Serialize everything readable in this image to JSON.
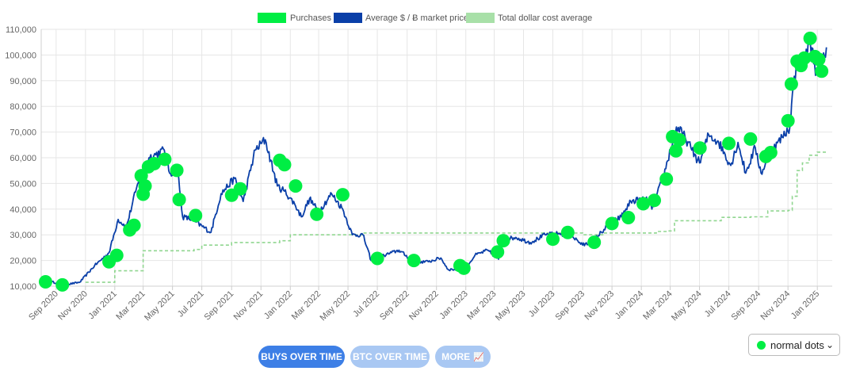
{
  "colors": {
    "purchases": "#00ee44",
    "price": "#0a3fa8",
    "dca": "#90d690",
    "grid": "#e6e6e6",
    "axis_text": "#666666",
    "button_primary": "#3d7fe6",
    "button_secondary": "#a9c8f3"
  },
  "chart_data": {
    "type": "line",
    "legend": {
      "position": "top-center",
      "entries": [
        "Purchases",
        "Average $ / Ƀ market price",
        "Total dollar cost average"
      ]
    },
    "grid": true,
    "yticks": [
      "10,000",
      "20,000",
      "30,000",
      "40,000",
      "50,000",
      "60,000",
      "70,000",
      "80,000",
      "90,000",
      "100,000",
      "110,000"
    ],
    "ylim": [
      10000,
      110000
    ],
    "xticks": [
      "Sep 2020",
      "Nov 2020",
      "Jan 2021",
      "Mar 2021",
      "May 2021",
      "Jul 2021",
      "Sep 2021",
      "Nov 2021",
      "Jan 2022",
      "Mar 2022",
      "May 2022",
      "Jul 2022",
      "Sep 2022",
      "Nov 2022",
      "Jan 2023",
      "Mar 2023",
      "May 2023",
      "Jul 2023",
      "Sep 2023",
      "Nov 2023",
      "Jan 2024",
      "Mar 2024",
      "May 2024",
      "Jul 2024",
      "Sep 2024",
      "Nov 2024",
      "Jan 2025"
    ],
    "xlim": [
      "2020-08-01",
      "2025-02-01"
    ],
    "series": [
      {
        "name": "Average $ / Ƀ market price",
        "type": "line",
        "x": [
          "2020-08-20",
          "2020-09-20",
          "2020-10-20",
          "2020-11-20",
          "2020-12-20",
          "2021-01-08",
          "2021-01-25",
          "2021-02-15",
          "2021-03-13",
          "2021-04-14",
          "2021-04-25",
          "2021-05-12",
          "2021-05-22",
          "2021-06-10",
          "2021-07-20",
          "2021-08-10",
          "2021-09-07",
          "2021-09-25",
          "2021-10-20",
          "2021-11-10",
          "2021-12-05",
          "2021-12-20",
          "2022-01-10",
          "2022-01-24",
          "2022-02-10",
          "2022-03-01",
          "2022-03-28",
          "2022-04-20",
          "2022-05-10",
          "2022-06-01",
          "2022-06-18",
          "2022-07-15",
          "2022-08-15",
          "2022-09-15",
          "2022-10-15",
          "2022-11-10",
          "2022-11-25",
          "2022-12-30",
          "2023-01-20",
          "2023-02-15",
          "2023-03-10",
          "2023-03-20",
          "2023-04-15",
          "2023-05-15",
          "2023-06-15",
          "2023-07-15",
          "2023-08-10",
          "2023-09-01",
          "2023-09-20",
          "2023-10-25",
          "2023-11-20",
          "2023-12-10",
          "2024-01-10",
          "2024-01-23",
          "2024-02-15",
          "2024-03-14",
          "2024-04-01",
          "2024-04-15",
          "2024-05-01",
          "2024-05-20",
          "2024-06-10",
          "2024-07-05",
          "2024-07-20",
          "2024-08-05",
          "2024-08-25",
          "2024-09-06",
          "2024-09-30",
          "2024-10-20",
          "2024-11-05",
          "2024-11-12",
          "2024-11-22",
          "2024-12-05",
          "2024-12-17",
          "2024-12-30",
          "2025-01-10",
          "2025-01-20"
        ],
        "values": [
          11800,
          10600,
          11500,
          18000,
          23000,
          36000,
          33000,
          48000,
          60000,
          63000,
          54000,
          55000,
          37000,
          36000,
          31000,
          46000,
          52000,
          43000,
          63000,
          67000,
          49000,
          47000,
          42000,
          37000,
          44000,
          39000,
          46000,
          40000,
          30000,
          30000,
          20000,
          22000,
          24000,
          19500,
          19500,
          21000,
          16500,
          16600,
          22000,
          24000,
          20500,
          28000,
          29000,
          27000,
          30000,
          30500,
          29500,
          26000,
          27000,
          34000,
          37000,
          43000,
          44000,
          40000,
          52000,
          72000,
          68000,
          63000,
          58000,
          69000,
          66000,
          57000,
          66000,
          54000,
          64000,
          54000,
          63000,
          68000,
          72000,
          88000,
          98000,
          97000,
          106000,
          93000,
          95000,
          103000
        ]
      },
      {
        "name": "Purchases",
        "type": "scatter",
        "x": [
          "2020-08-10",
          "2020-09-14",
          "2020-12-20",
          "2021-01-05",
          "2021-02-01",
          "2021-02-10",
          "2021-02-25",
          "2021-03-01",
          "2021-03-05",
          "2021-03-12",
          "2021-03-24",
          "2021-04-15",
          "2021-05-10",
          "2021-05-15",
          "2021-06-18",
          "2021-09-01",
          "2021-09-19",
          "2021-12-10",
          "2021-12-20",
          "2022-01-12",
          "2022-02-25",
          "2022-04-20",
          "2022-07-01",
          "2022-09-15",
          "2022-12-20",
          "2022-12-28",
          "2023-03-08",
          "2023-03-20",
          "2023-07-01",
          "2023-08-01",
          "2023-09-25",
          "2023-11-01",
          "2023-12-05",
          "2024-01-05",
          "2024-01-28",
          "2024-02-22",
          "2024-03-06",
          "2024-03-13",
          "2024-03-20",
          "2024-05-02",
          "2024-07-01",
          "2024-08-15",
          "2024-09-16",
          "2024-09-26",
          "2024-11-01",
          "2024-11-08",
          "2024-11-20",
          "2024-11-28",
          "2024-12-05",
          "2024-12-17",
          "2024-12-27",
          "2025-01-04",
          "2025-01-10"
        ],
        "values": [
          11700,
          10500,
          19500,
          22000,
          31900,
          33700,
          53000,
          45800,
          49000,
          56500,
          57700,
          59400,
          55100,
          43700,
          37500,
          45400,
          47900,
          59000,
          57300,
          49000,
          38000,
          45600,
          20800,
          20000,
          18000,
          17000,
          23300,
          27700,
          28300,
          30900,
          27100,
          34400,
          36700,
          42100,
          43400,
          51700,
          68200,
          62700,
          67000,
          63800,
          65600,
          67300,
          60500,
          62000,
          74400,
          88700,
          97600,
          95900,
          98800,
          106500,
          99400,
          98300,
          93700
        ]
      },
      {
        "name": "Total dollar cost average",
        "type": "step",
        "x": [
          "2020-11-01",
          "2020-12-15",
          "2021-01-01",
          "2021-02-25",
          "2021-03-01",
          "2021-06-15",
          "2021-07-01",
          "2021-09-01",
          "2021-12-10",
          "2022-01-01",
          "2022-06-01",
          "2023-09-01",
          "2023-10-15",
          "2024-02-01",
          "2024-02-25",
          "2024-03-10",
          "2024-04-01",
          "2024-06-15",
          "2024-08-15",
          "2024-09-20",
          "2024-11-01",
          "2024-11-10",
          "2024-11-20",
          "2024-12-01",
          "2024-12-15",
          "2025-01-01",
          "2025-01-20"
        ],
        "values": [
          11500,
          11500,
          16000,
          16000,
          23800,
          24300,
          26000,
          27000,
          27700,
          30000,
          30700,
          30000,
          30700,
          31300,
          31500,
          35500,
          35500,
          36800,
          37000,
          39300,
          39500,
          45000,
          55000,
          58000,
          61000,
          62200,
          62200
        ]
      }
    ]
  },
  "buttons": [
    {
      "label": "BUYS OVER TIME"
    },
    {
      "label": "BTC OVER TIME"
    },
    {
      "label": "MORE",
      "icon": "chart-increasing-icon"
    }
  ],
  "dots_select": {
    "selected": "normal dots",
    "icon": "green-dot-icon"
  }
}
